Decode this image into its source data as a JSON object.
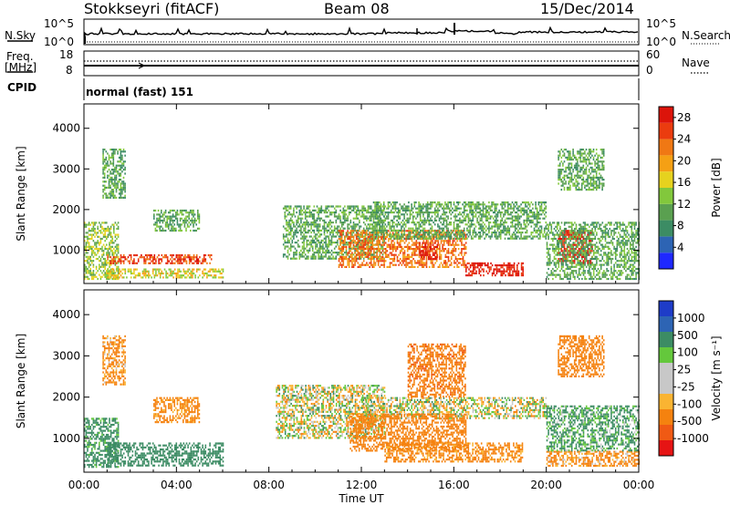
{
  "header": {
    "station": "Stokkseyri (fitACF)",
    "beam": "Beam 08",
    "date": "15/Dec/2014"
  },
  "nsky_panel": {
    "label": "N.Sky",
    "left_ticks": [
      "10^5",
      "10^0"
    ],
    "right_ticks": [
      "10^5",
      "10^0"
    ],
    "right_label": "N.Search"
  },
  "freq_panel": {
    "label_line1": "Freq.",
    "label_line2": "[MHz]",
    "left_ticks": [
      "18",
      "8"
    ],
    "right_ticks": [
      "60",
      "0"
    ],
    "right_label": "Nave"
  },
  "cpid_panel": {
    "label": "CPID",
    "value": "normal (fast) 151"
  },
  "colors": {
    "axis": "#000000",
    "power_scale": [
      "#1e28ff",
      "#2d64b4",
      "#3c8c64",
      "#5aa050",
      "#82c83c",
      "#e6d21e",
      "#f5a014",
      "#f07814",
      "#eb3c0f",
      "#dc140a"
    ],
    "velocity_scale": [
      "#e61414",
      "#f05a14",
      "#f5820f",
      "#fab432",
      "#c8c8c8",
      "#c8c8c8",
      "#64c83c",
      "#3c8c64",
      "#2d64b4",
      "#1e3cc8"
    ]
  },
  "chart_data": [
    {
      "type": "heatmap",
      "name": "power",
      "ylabel": "Slant Range [km]",
      "xlabel": "Time UT",
      "xlim": [
        "00:00",
        "24:00"
      ],
      "ylim": [
        180,
        4600
      ],
      "x_ticks": [
        "00:00",
        "04:00",
        "08:00",
        "12:00",
        "16:00",
        "20:00",
        "00:00"
      ],
      "y_ticks": [
        1000,
        2000,
        3000,
        4000
      ],
      "colorbar": {
        "label": "Power [dB]",
        "ticks": [
          "28",
          "24",
          "20",
          "16",
          "12",
          "8",
          "4"
        ],
        "range": [
          0,
          30
        ]
      },
      "echo_regions": [
        {
          "t": [
            0.0,
            1.5
          ],
          "r": [
            300,
            1700
          ],
          "level": 12
        },
        {
          "t": [
            1.0,
            5.5
          ],
          "r": [
            700,
            900
          ],
          "level": 24
        },
        {
          "t": [
            1.0,
            6.0
          ],
          "r": [
            350,
            550
          ],
          "level": 14
        },
        {
          "t": [
            0.8,
            1.8
          ],
          "r": [
            2300,
            3500
          ],
          "level": 8
        },
        {
          "t": [
            3.0,
            5.0
          ],
          "r": [
            1500,
            2000
          ],
          "level": 10
        },
        {
          "t": [
            8.6,
            13.0
          ],
          "r": [
            800,
            2100
          ],
          "level": 10
        },
        {
          "t": [
            11.0,
            16.5
          ],
          "r": [
            600,
            1500
          ],
          "level": 22
        },
        {
          "t": [
            14.5,
            15.3
          ],
          "r": [
            800,
            1200
          ],
          "level": 30
        },
        {
          "t": [
            12.5,
            20.0
          ],
          "r": [
            1300,
            2200
          ],
          "level": 10
        },
        {
          "t": [
            16.5,
            19.0
          ],
          "r": [
            400,
            700
          ],
          "level": 26
        },
        {
          "t": [
            20.5,
            22.0
          ],
          "r": [
            700,
            1500
          ],
          "level": 26
        },
        {
          "t": [
            20.0,
            24.0
          ],
          "r": [
            300,
            1700
          ],
          "level": 10
        },
        {
          "t": [
            20.5,
            22.5
          ],
          "r": [
            2500,
            3500
          ],
          "level": 8
        }
      ]
    },
    {
      "type": "heatmap",
      "name": "velocity",
      "ylabel": "Slant Range [km]",
      "xlabel": "Time UT",
      "xlim": [
        "00:00",
        "24:00"
      ],
      "ylim": [
        180,
        4600
      ],
      "x_ticks": [
        "00:00",
        "04:00",
        "08:00",
        "12:00",
        "16:00",
        "20:00",
        "00:00"
      ],
      "y_ticks": [
        1000,
        2000,
        3000,
        4000
      ],
      "colorbar": {
        "label": "Velocity [m s⁻¹]",
        "ticks": [
          "1000",
          "500",
          "100",
          "25",
          "-25",
          "-100",
          "-500",
          "-1000"
        ],
        "range": [
          -1000,
          1000
        ]
      },
      "echo_regions": [
        {
          "t": [
            0.0,
            1.5
          ],
          "r": [
            300,
            1500
          ],
          "v": 200
        },
        {
          "t": [
            1.0,
            6.0
          ],
          "r": [
            350,
            900
          ],
          "v": 300
        },
        {
          "t": [
            3.0,
            5.0
          ],
          "r": [
            1400,
            2000
          ],
          "v": -200
        },
        {
          "t": [
            0.8,
            1.8
          ],
          "r": [
            2300,
            3500
          ],
          "v": -150
        },
        {
          "t": [
            8.3,
            13.0
          ],
          "r": [
            1000,
            2300
          ],
          "v": 0
        },
        {
          "t": [
            12.0,
            20.0
          ],
          "r": [
            1500,
            2000
          ],
          "v": 0
        },
        {
          "t": [
            11.5,
            16.5
          ],
          "r": [
            700,
            1600
          ],
          "v": -300
        },
        {
          "t": [
            13.0,
            19.0
          ],
          "r": [
            450,
            900
          ],
          "v": -200
        },
        {
          "t": [
            14.0,
            16.5
          ],
          "r": [
            2000,
            3300
          ],
          "v": -400
        },
        {
          "t": [
            20.0,
            24.0
          ],
          "r": [
            350,
            700
          ],
          "v": -150
        },
        {
          "t": [
            20.0,
            24.0
          ],
          "r": [
            700,
            1800
          ],
          "v": 150
        },
        {
          "t": [
            20.5,
            22.5
          ],
          "r": [
            2500,
            3500
          ],
          "v": -300
        }
      ]
    }
  ]
}
